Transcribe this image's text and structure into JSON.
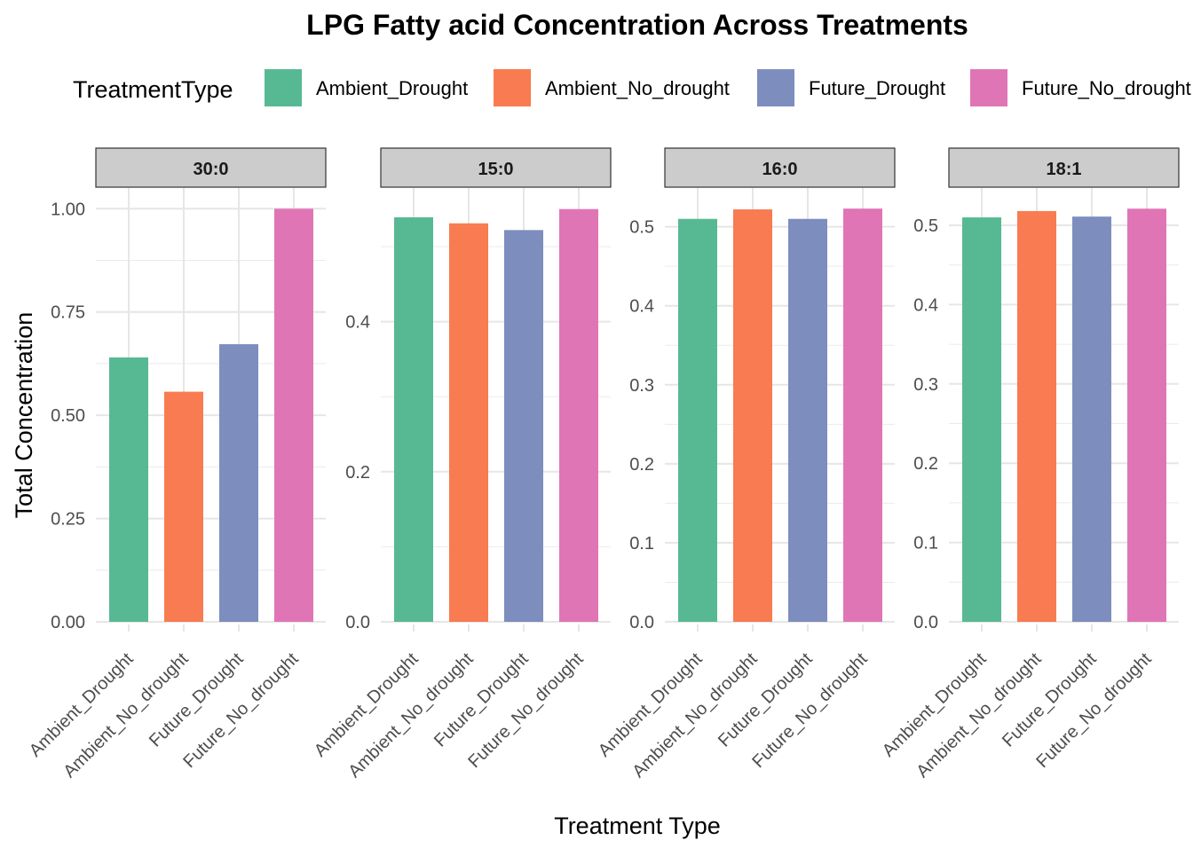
{
  "chart_data": {
    "type": "bar",
    "title": "LPG  Fatty acid Concentration Across Treatments",
    "xlabel": "Treatment Type",
    "ylabel": "Total Concentration",
    "legend": {
      "title": "TreatmentType",
      "position": "top",
      "entries": [
        "Ambient_Drought",
        "Ambient_No_drought",
        "Future_Drought",
        "Future_No_drought"
      ]
    },
    "categories": [
      "Ambient_Drought",
      "Ambient_No_drought",
      "Future_Drought",
      "Future_No_drought"
    ],
    "colors": [
      "#57b994",
      "#f87b51",
      "#7d8dbe",
      "#e075b6"
    ],
    "grid": true,
    "facets": [
      {
        "label": "30:0",
        "values": [
          0.64,
          0.557,
          0.672,
          1.0
        ],
        "ylim": [
          0,
          1.05
        ],
        "yticks": [
          0,
          0.25,
          0.5,
          0.75,
          1.0
        ],
        "ytick_labels": [
          "0.00",
          "0.25",
          "0.50",
          "0.75",
          "1.00"
        ]
      },
      {
        "label": "15:0",
        "values": [
          0.539,
          0.531,
          0.522,
          0.55
        ],
        "ylim": [
          0,
          0.578
        ],
        "yticks": [
          0,
          0.2,
          0.4
        ],
        "ytick_labels": [
          "0.0",
          "0.2",
          "0.4"
        ]
      },
      {
        "label": "16:0",
        "values": [
          0.51,
          0.522,
          0.51,
          0.523
        ],
        "ylim": [
          0,
          0.549
        ],
        "yticks": [
          0,
          0.1,
          0.2,
          0.3,
          0.4,
          0.5
        ],
        "ytick_labels": [
          "0.0",
          "0.1",
          "0.2",
          "0.3",
          "0.4",
          "0.5"
        ]
      },
      {
        "label": "18:1",
        "values": [
          0.51,
          0.518,
          0.511,
          0.521
        ],
        "ylim": [
          0,
          0.547
        ],
        "yticks": [
          0,
          0.1,
          0.2,
          0.3,
          0.4,
          0.5
        ],
        "ytick_labels": [
          "0.0",
          "0.1",
          "0.2",
          "0.3",
          "0.4",
          "0.5"
        ]
      }
    ]
  }
}
